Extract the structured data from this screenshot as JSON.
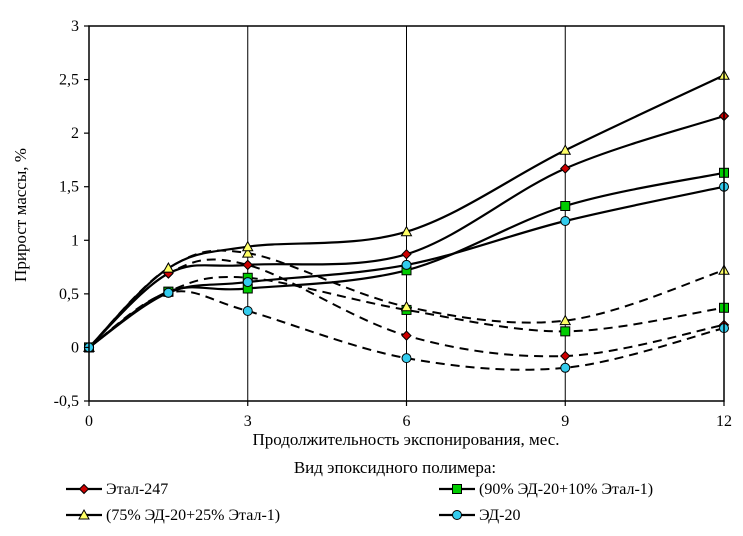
{
  "chart_data": {
    "type": "line",
    "title": "",
    "xlabel": "Продолжительность экспонирования, мес.",
    "ylabel": "Прирост массы, %",
    "legend_title": "Вид эпоксидного полимера:",
    "xlim": [
      0,
      12
    ],
    "ylim": [
      -0.5,
      3
    ],
    "x_ticks": [
      0,
      3,
      6,
      9,
      12
    ],
    "x_tick_labels": [
      "0",
      "3",
      "6",
      "9",
      "12"
    ],
    "y_ticks": [
      -0.5,
      0,
      0.5,
      1,
      1.5,
      2,
      2.5,
      3
    ],
    "y_tick_labels": [
      "-0,5",
      "0",
      "0,5",
      "1",
      "1,5",
      "2",
      "2,5",
      "3"
    ],
    "grid": "vertical",
    "legend_position": "bottom",
    "series": [
      {
        "name": "Этал-247",
        "marker": "diamond",
        "marker_color": "#cc0000",
        "solid": {
          "x": [
            0,
            1.5,
            3,
            6,
            9,
            12
          ],
          "y": [
            0,
            0.69,
            0.77,
            0.87,
            1.67,
            2.16
          ]
        },
        "dashed": {
          "x": [
            0,
            1.5,
            3,
            6,
            9,
            12
          ],
          "y": [
            0,
            0.69,
            0.77,
            0.11,
            -0.08,
            0.21
          ]
        }
      },
      {
        "name": "(90% ЭД-20+10% Этал-1)",
        "marker": "square",
        "marker_color": "#00cc00",
        "solid": {
          "x": [
            0,
            1.5,
            3,
            6,
            9,
            12
          ],
          "y": [
            0,
            0.52,
            0.55,
            0.72,
            1.32,
            1.63
          ]
        },
        "dashed": {
          "x": [
            0,
            1.5,
            3,
            6,
            9,
            12
          ],
          "y": [
            0,
            0.52,
            0.65,
            0.35,
            0.15,
            0.37
          ]
        }
      },
      {
        "name": "(75% ЭД-20+25% Этал-1)",
        "marker": "triangle",
        "marker_color": "#ffff66",
        "solid": {
          "x": [
            0,
            1.5,
            3,
            6,
            9,
            12
          ],
          "y": [
            0,
            0.74,
            0.94,
            1.08,
            1.84,
            2.54
          ]
        },
        "dashed": {
          "x": [
            0,
            1.5,
            3,
            6,
            9,
            12
          ],
          "y": [
            0,
            0.74,
            0.88,
            0.38,
            0.25,
            0.72
          ]
        }
      },
      {
        "name": "ЭД-20",
        "marker": "circle",
        "marker_color": "#33ccee",
        "solid": {
          "x": [
            0,
            1.5,
            3,
            6,
            9,
            12
          ],
          "y": [
            0,
            0.51,
            0.61,
            0.77,
            1.18,
            1.5
          ]
        },
        "dashed": {
          "x": [
            0,
            1.5,
            3,
            6,
            9,
            12
          ],
          "y": [
            0,
            0.51,
            0.34,
            -0.1,
            -0.19,
            0.18
          ]
        }
      }
    ]
  }
}
